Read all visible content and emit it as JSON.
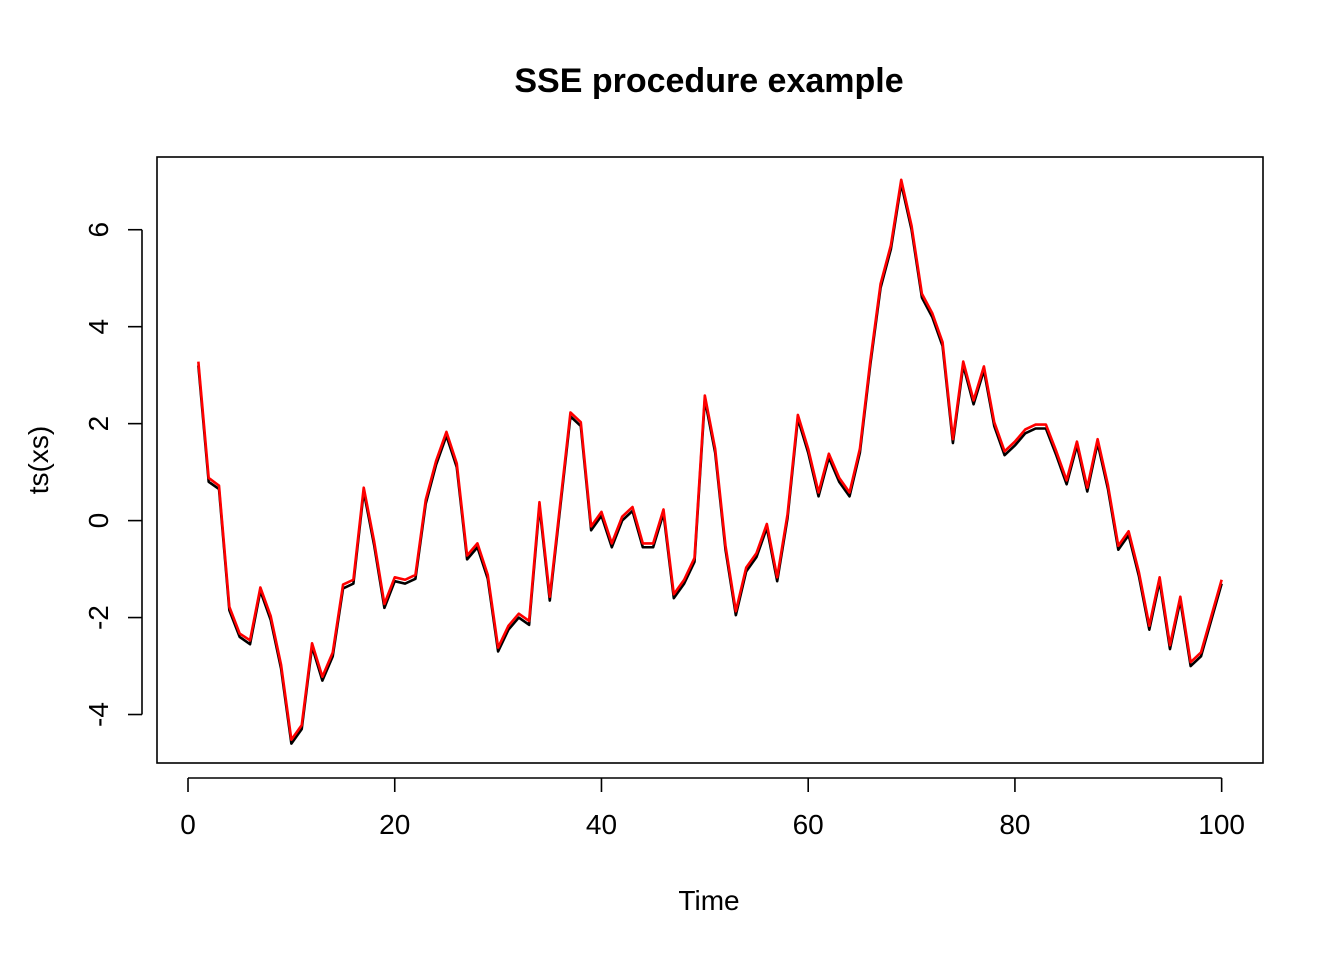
{
  "chart_data": {
    "type": "line",
    "title": "SSE procedure example",
    "xlabel": "Time",
    "ylabel": "ts(xs)",
    "xlim": [
      -3,
      104
    ],
    "ylim": [
      -5,
      7.5
    ],
    "xticks": [
      0,
      20,
      40,
      60,
      80,
      100
    ],
    "xtick_labels": [
      "0",
      "20",
      "40",
      "60",
      "80",
      "100"
    ],
    "yticks": [
      -4,
      -2,
      0,
      2,
      4,
      6
    ],
    "ytick_labels": [
      "-4",
      "-2",
      "0",
      "2",
      "4",
      "6"
    ],
    "grid": false,
    "legend": "none",
    "x": [
      1,
      2,
      3,
      4,
      5,
      6,
      7,
      8,
      9,
      10,
      11,
      12,
      13,
      14,
      15,
      16,
      17,
      18,
      19,
      20,
      21,
      22,
      23,
      24,
      25,
      26,
      27,
      28,
      29,
      30,
      31,
      32,
      33,
      34,
      35,
      36,
      37,
      38,
      39,
      40,
      41,
      42,
      43,
      44,
      45,
      46,
      47,
      48,
      49,
      50,
      51,
      52,
      53,
      54,
      55,
      56,
      57,
      58,
      59,
      60,
      61,
      62,
      63,
      64,
      65,
      66,
      67,
      68,
      69,
      70,
      71,
      72,
      73,
      74,
      75,
      76,
      77,
      78,
      79,
      80,
      81,
      82,
      83,
      84,
      85,
      86,
      87,
      88,
      89,
      90,
      91,
      92,
      93,
      94,
      95,
      96,
      97,
      98,
      99,
      100
    ],
    "series": [
      {
        "color": "#000000",
        "values": [
          3.2,
          0.8,
          0.65,
          -1.85,
          -2.4,
          -2.55,
          -1.45,
          -2.05,
          -3.05,
          -4.6,
          -4.3,
          -2.6,
          -3.3,
          -2.8,
          -1.4,
          -1.3,
          0.6,
          -0.5,
          -1.8,
          -1.25,
          -1.3,
          -1.2,
          0.35,
          1.15,
          1.75,
          1.1,
          -0.8,
          -0.55,
          -1.2,
          -2.7,
          -2.25,
          -2.0,
          -2.15,
          0.3,
          -1.65,
          0.25,
          2.15,
          1.95,
          -0.2,
          0.1,
          -0.55,
          0.0,
          0.2,
          -0.55,
          -0.55,
          0.15,
          -1.6,
          -1.3,
          -0.85,
          2.5,
          1.4,
          -0.6,
          -1.95,
          -1.05,
          -0.75,
          -0.15,
          -1.25,
          0.05,
          2.1,
          1.4,
          0.5,
          1.3,
          0.8,
          0.5,
          1.4,
          3.2,
          4.8,
          5.6,
          6.95,
          6.0,
          4.6,
          4.2,
          3.6,
          1.6,
          3.2,
          2.4,
          3.1,
          1.95,
          1.35,
          1.55,
          1.8,
          1.9,
          1.9,
          1.35,
          0.75,
          1.55,
          0.6,
          1.6,
          0.65,
          -0.6,
          -0.3,
          -1.15,
          -2.25,
          -1.25,
          -2.65,
          -1.65,
          -3.0,
          -2.8,
          -2.05,
          -1.3
        ]
      },
      {
        "color": "#ff0000",
        "values": [
          3.28,
          0.88,
          0.72,
          -1.78,
          -2.33,
          -2.47,
          -1.38,
          -1.97,
          -2.97,
          -4.52,
          -4.22,
          -2.53,
          -3.22,
          -2.72,
          -1.32,
          -1.22,
          0.68,
          -0.42,
          -1.72,
          -1.17,
          -1.22,
          -1.12,
          0.43,
          1.23,
          1.83,
          1.18,
          -0.72,
          -0.47,
          -1.12,
          -2.62,
          -2.17,
          -1.92,
          -2.07,
          0.38,
          -1.57,
          0.33,
          2.23,
          2.03,
          -0.12,
          0.18,
          -0.47,
          0.08,
          0.28,
          -0.47,
          -0.47,
          0.23,
          -1.52,
          -1.22,
          -0.77,
          2.58,
          1.48,
          -0.52,
          -1.87,
          -0.97,
          -0.67,
          -0.07,
          -1.17,
          0.13,
          2.18,
          1.48,
          0.58,
          1.38,
          0.88,
          0.58,
          1.48,
          3.28,
          4.88,
          5.68,
          7.03,
          6.08,
          4.68,
          4.28,
          3.68,
          1.68,
          3.28,
          2.48,
          3.18,
          2.03,
          1.43,
          1.63,
          1.88,
          1.98,
          1.98,
          1.43,
          0.83,
          1.63,
          0.68,
          1.68,
          0.73,
          -0.52,
          -0.22,
          -1.07,
          -2.17,
          -1.17,
          -2.57,
          -1.57,
          -2.92,
          -2.72,
          -1.97,
          -1.22
        ]
      }
    ]
  }
}
